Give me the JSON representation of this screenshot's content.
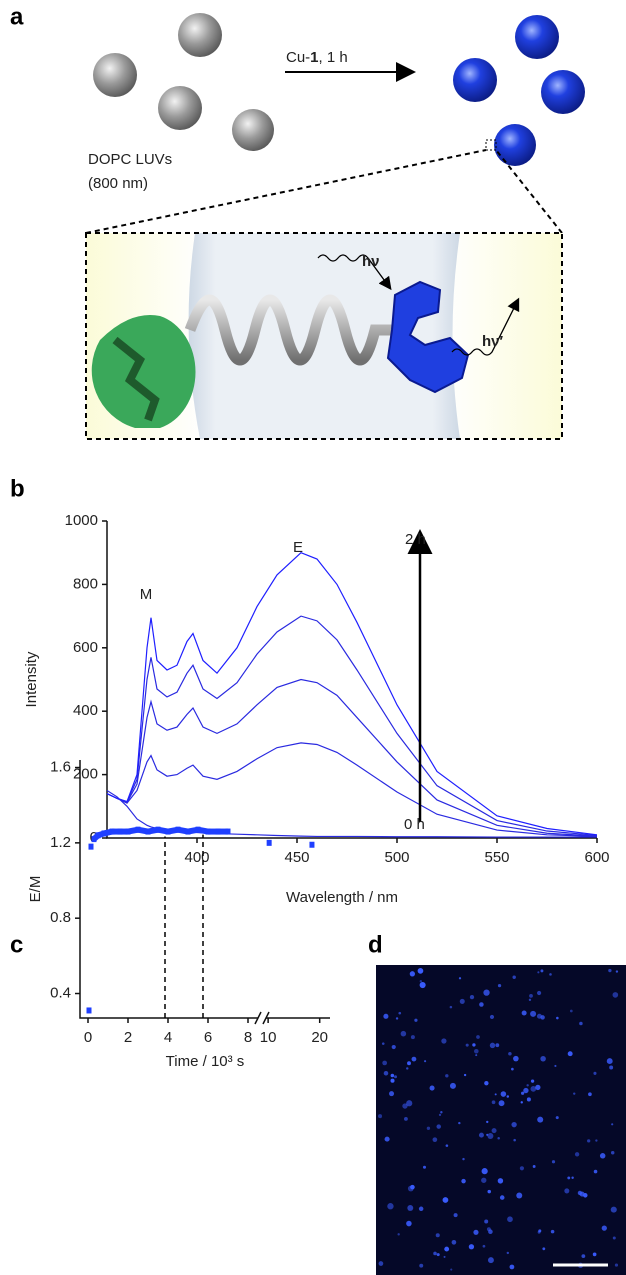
{
  "panel_labels": [
    "a",
    "b",
    "c",
    "d"
  ],
  "schematic": {
    "arrow_label": [
      "Cu-",
      "1",
      ", 1 h"
    ],
    "vesicle_label": "DOPC LUVs",
    "vesicle_size": "(800 nm)",
    "excitation": "hν",
    "emission": "hν′"
  },
  "chart_data": [
    {
      "type": "line",
      "xlabel": "Wavelength / nm",
      "ylabel": "Intensity",
      "x": [
        355,
        360,
        365,
        370,
        375,
        377,
        380,
        385,
        390,
        395,
        398,
        403,
        410,
        420,
        430,
        440,
        452,
        460,
        470,
        480,
        500,
        520,
        550,
        575,
        600
      ],
      "series": [
        {
          "color": "#2a2ae0",
          "values": [
            150,
            130,
            100,
            60,
            40,
            35,
            30,
            25,
            22,
            20,
            18,
            16,
            14,
            12,
            10,
            8,
            6,
            5,
            5,
            5,
            4,
            4,
            3,
            3,
            3
          ]
        },
        {
          "color": "#2a2ae0",
          "values": [
            140,
            125,
            110,
            150,
            240,
            260,
            215,
            195,
            200,
            220,
            230,
            195,
            185,
            210,
            250,
            285,
            300,
            295,
            270,
            230,
            145,
            75,
            25,
            10,
            5
          ]
        },
        {
          "color": "#2a2ae0",
          "values": [
            140,
            125,
            112,
            170,
            380,
            430,
            360,
            340,
            350,
            390,
            410,
            350,
            330,
            360,
            420,
            475,
            500,
            490,
            450,
            380,
            240,
            120,
            40,
            15,
            6
          ]
        },
        {
          "color": "#2a2ae0",
          "values": [
            140,
            125,
            114,
            185,
            500,
            570,
            470,
            445,
            460,
            520,
            545,
            470,
            440,
            490,
            580,
            650,
            700,
            685,
            625,
            530,
            330,
            165,
            55,
            22,
            8
          ]
        },
        {
          "color": "#1f1fff",
          "values": [
            140,
            125,
            115,
            200,
            600,
            695,
            560,
            530,
            545,
            620,
            645,
            560,
            520,
            600,
            730,
            830,
            900,
            880,
            800,
            680,
            420,
            210,
            70,
            30,
            10
          ]
        }
      ],
      "annotations": {
        "M": "M",
        "E": "E",
        "end": "2 h",
        "start": "0 h"
      },
      "xlim": [
        355,
        600
      ],
      "xticks": [
        400,
        450,
        500,
        550,
        600
      ],
      "ylim": [
        0,
        1000
      ],
      "yticks": [
        0,
        200,
        400,
        600,
        800,
        1000
      ]
    },
    {
      "type": "scatter",
      "xlabel": "Time / 10³ s",
      "ylabel": "E/M",
      "color": "#1f3fff",
      "x": [
        0.05,
        0.15,
        0.3,
        0.5,
        0.8,
        1.2,
        1.6,
        2.0,
        2.5,
        3.0,
        3.5,
        4.0,
        4.5,
        5.0,
        5.5,
        6.0,
        6.5,
        7.0,
        10.2,
        18.5
      ],
      "values": [
        0.31,
        1.18,
        1.22,
        1.24,
        1.25,
        1.26,
        1.26,
        1.26,
        1.27,
        1.26,
        1.27,
        1.26,
        1.27,
        1.26,
        1.27,
        1.26,
        1.26,
        1.26,
        1.2,
        1.19
      ],
      "vlines": [
        3.85,
        5.75
      ],
      "xlim": [
        -0.4,
        22
      ],
      "xbreak": [
        8.6,
        9.2
      ],
      "xticks": [
        0,
        2,
        4,
        6,
        8,
        10,
        20
      ],
      "ylim": [
        0.27,
        1.64
      ],
      "yticks": [
        0.4,
        0.8,
        1.2,
        1.6
      ]
    }
  ]
}
